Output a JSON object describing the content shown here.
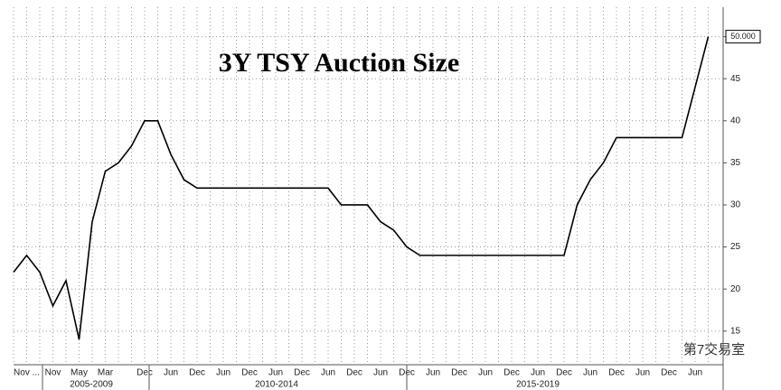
{
  "chart_data": {
    "type": "line",
    "title": "3Y TSY Auction Size",
    "categories": [
      null,
      "Nov ...",
      null,
      "Nov",
      null,
      "May",
      null,
      "Mar",
      null,
      null,
      "Dec",
      null,
      "Jun",
      null,
      "Dec",
      null,
      "Jun",
      null,
      "Dec",
      null,
      "Jun",
      null,
      "Dec",
      null,
      "Jun",
      null,
      "Dec",
      null,
      "Jun",
      null,
      "Dec",
      null,
      "Jun",
      null,
      "Dec",
      null,
      "Jun",
      null,
      "Dec",
      null,
      "Jun",
      null,
      "Dec",
      null,
      "Jun",
      null,
      "Dec",
      null,
      "Jun",
      null,
      "Dec",
      null,
      "Jun",
      null
    ],
    "x_groups": [
      "2005-2009",
      "2010-2014",
      "2015-2019"
    ],
    "series": [
      {
        "name": "3Y TSY Auction Size",
        "color": "#000000",
        "values": [
          22,
          24,
          22,
          18,
          21,
          14,
          28,
          34,
          35,
          37,
          40,
          40,
          36,
          33,
          32,
          32,
          32,
          32,
          32,
          32,
          32,
          32,
          32,
          32,
          32,
          30,
          30,
          30,
          28,
          27,
          25,
          24,
          24,
          24,
          24,
          24,
          24,
          24,
          24,
          24,
          24,
          24,
          24,
          30,
          33,
          35,
          38,
          38,
          38,
          38,
          38,
          38,
          44,
          50
        ],
        "value_labels": [
          null,
          null,
          null,
          null,
          null,
          null,
          null,
          null,
          null,
          null,
          null,
          null,
          null,
          null,
          null,
          null,
          null,
          null,
          null,
          null,
          null,
          null,
          null,
          null,
          null,
          null,
          null,
          null,
          null,
          null,
          null,
          null,
          null,
          null,
          null,
          null,
          null,
          null,
          null,
          null,
          null,
          null,
          null,
          null,
          null,
          null,
          null,
          null,
          null,
          null,
          null,
          null,
          null,
          "50.000"
        ]
      }
    ],
    "ylim": [
      11,
      53.5
    ],
    "yticks": [
      15,
      20,
      25,
      30,
      35,
      40,
      45,
      50
    ],
    "grid": true,
    "watermark": "第7交易室"
  }
}
